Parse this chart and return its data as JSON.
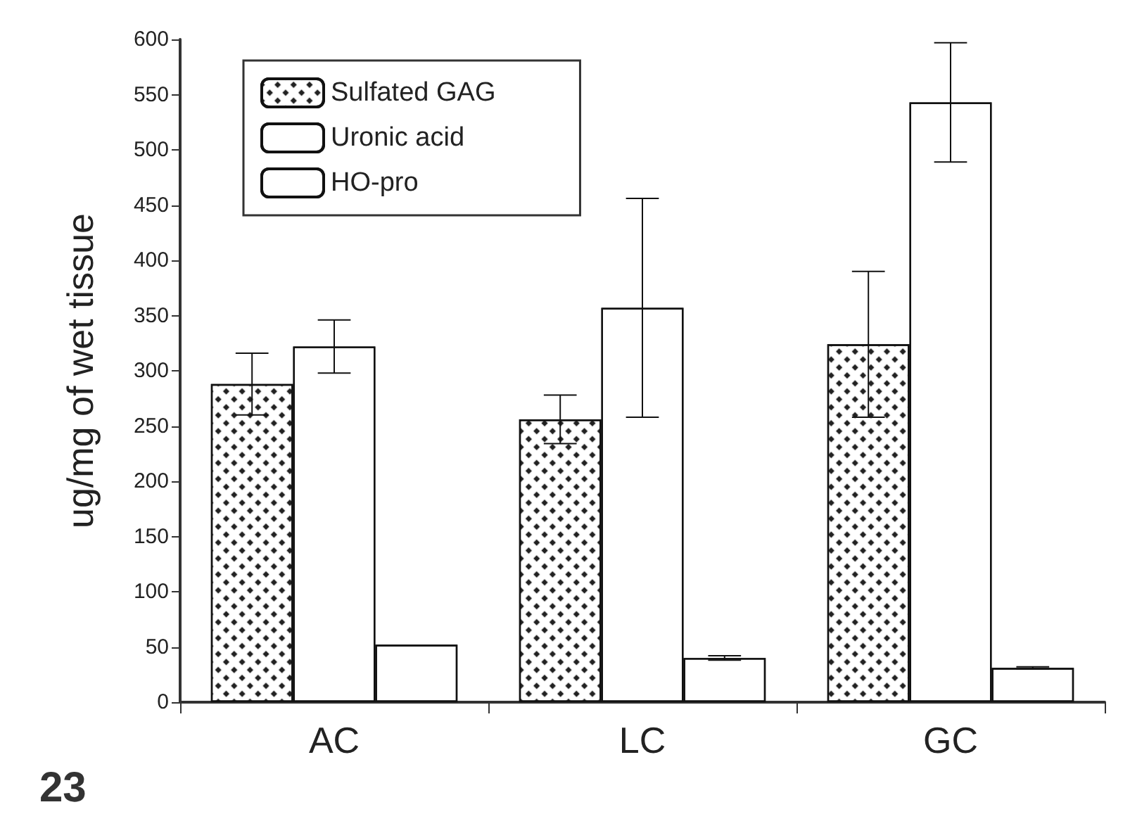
{
  "chart_data": {
    "type": "bar",
    "ylabel": "ug/mg of wet tissue",
    "categories": [
      "AC",
      "LC",
      "GC"
    ],
    "series": [
      {
        "name": "Sulfated GAG",
        "color": "#ffffff",
        "values": [
          288,
          256,
          324
        ],
        "errors": [
          28,
          22,
          66
        ]
      },
      {
        "name": "Uronic acid",
        "color": "#ffffff",
        "values": [
          322,
          357,
          543
        ],
        "errors": [
          24,
          99,
          54
        ]
      },
      {
        "name": "HO-pro",
        "color": "#ffffff",
        "values": [
          52,
          40,
          31
        ],
        "errors": [
          null,
          2,
          1
        ]
      }
    ],
    "ylim": [
      0,
      600
    ],
    "yticks": [
      0,
      50,
      100,
      150,
      200,
      250,
      300,
      350,
      400,
      450,
      500,
      550,
      600
    ],
    "grid": false,
    "legend": "top left",
    "annotations": [
      "23"
    ]
  }
}
